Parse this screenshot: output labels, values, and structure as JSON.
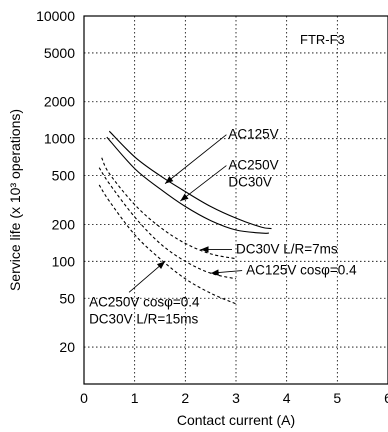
{
  "chart_data": {
    "type": "line",
    "xlabel": "Contact current (A)",
    "ylabel": "Service life (x 10³ operations)",
    "model_label": "FTR-F3",
    "xlim": [
      0,
      6
    ],
    "ylim": [
      10,
      10000
    ],
    "y_scale": "log",
    "grid": true,
    "x_ticks": [
      0,
      1,
      2,
      3,
      4,
      5,
      6
    ],
    "x_tick_labels": [
      "0",
      "1",
      "2",
      "3",
      "4",
      "5",
      "6"
    ],
    "y_ticks": [
      10000,
      5000,
      2000,
      1000,
      500,
      200,
      100,
      50,
      20
    ],
    "y_tick_labels": [
      "10000",
      "5000",
      "2000",
      "1000",
      "500",
      "200",
      "100",
      "50",
      "20"
    ],
    "series": [
      {
        "id": "ac125v",
        "style": "solid",
        "x": [
          0.5,
          1,
          1.5,
          2,
          2.5,
          3,
          3.5,
          3.7
        ],
        "y": [
          1150,
          710,
          500,
          370,
          280,
          225,
          190,
          185
        ]
      },
      {
        "id": "ac250v-dc30v",
        "style": "solid",
        "x": [
          0.45,
          1,
          1.5,
          2,
          2.5,
          3,
          3.5,
          3.65
        ],
        "y": [
          1030,
          570,
          390,
          280,
          215,
          180,
          170,
          170
        ]
      },
      {
        "id": "dc30v-lr7ms",
        "style": "dashed",
        "x": [
          0.35,
          0.5,
          1,
          1.5,
          2,
          2.5,
          3
        ],
        "y": [
          700,
          520,
          290,
          190,
          140,
          115,
          105
        ]
      },
      {
        "id": "ac125v-cos04",
        "style": "dashed",
        "x": [
          0.3,
          0.5,
          1,
          1.5,
          2,
          2.5,
          3
        ],
        "y": [
          580,
          430,
          230,
          140,
          100,
          80,
          72
        ]
      },
      {
        "id": "ac250v-cos04-dc30v-lr15ms",
        "style": "dashed",
        "x": [
          0.3,
          0.5,
          1,
          1.5,
          2,
          2.5,
          3
        ],
        "y": [
          420,
          310,
          165,
          105,
          72,
          55,
          45
        ]
      }
    ],
    "annotations": [
      {
        "id": "ac125v",
        "lines": [
          "AC125V"
        ],
        "target": [
          1.6,
          430
        ],
        "text_at": [
          2.85,
          1000
        ]
      },
      {
        "id": "ac250v-dc30v",
        "lines": [
          "AC250V",
          "DC30V"
        ],
        "target": [
          1.9,
          310
        ],
        "text_at": [
          2.85,
          560
        ]
      },
      {
        "id": "dc30v-lr7ms",
        "lines": [
          "DC30V L/R=7ms"
        ],
        "target": [
          2.3,
          125
        ],
        "text_at": [
          3.0,
          116
        ]
      },
      {
        "id": "ac125v-cos04",
        "lines": [
          "AC125V cosφ=0.4"
        ],
        "target": [
          2.5,
          80
        ],
        "text_at": [
          3.2,
          78
        ]
      },
      {
        "id": "ac250v-cos04-dc30v-lr15ms",
        "lines": [
          "AC250V cosφ=0.4",
          "DC30V L/R=15ms"
        ],
        "target": [
          1.6,
          100
        ],
        "text_at": [
          0.1,
          43
        ]
      }
    ]
  }
}
